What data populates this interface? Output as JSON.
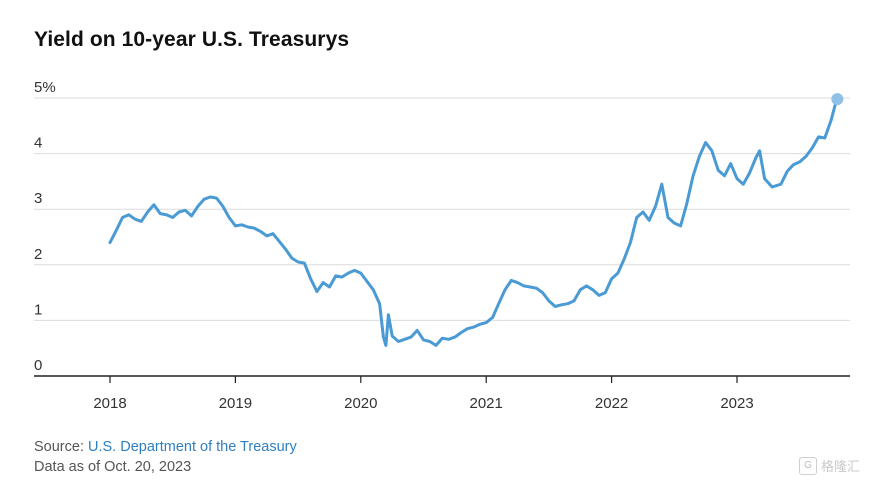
{
  "chart_data": {
    "type": "line",
    "title": "Yield on 10-year U.S. Treasurys",
    "y_unit_suffix": "%",
    "ylim": [
      0,
      5
    ],
    "yticks": [
      "0",
      "1",
      "2",
      "3",
      "4",
      "5%"
    ],
    "xlim": [
      2018.0,
      2023.88
    ],
    "xticks": [
      "2018",
      "2019",
      "2020",
      "2021",
      "2022",
      "2023"
    ],
    "grid": true,
    "line_color": "#4a9ad4",
    "endpoint_color": "#8fc0e6",
    "series": [
      {
        "values": [
          [
            2018.0,
            2.4
          ],
          [
            2018.05,
            2.62
          ],
          [
            2018.1,
            2.85
          ],
          [
            2018.15,
            2.9
          ],
          [
            2018.2,
            2.82
          ],
          [
            2018.25,
            2.78
          ],
          [
            2018.3,
            2.95
          ],
          [
            2018.35,
            3.08
          ],
          [
            2018.4,
            2.92
          ],
          [
            2018.45,
            2.9
          ],
          [
            2018.5,
            2.85
          ],
          [
            2018.55,
            2.95
          ],
          [
            2018.6,
            2.98
          ],
          [
            2018.65,
            2.88
          ],
          [
            2018.7,
            3.05
          ],
          [
            2018.75,
            3.18
          ],
          [
            2018.8,
            3.22
          ],
          [
            2018.85,
            3.2
          ],
          [
            2018.9,
            3.05
          ],
          [
            2018.95,
            2.85
          ],
          [
            2019.0,
            2.7
          ],
          [
            2019.05,
            2.72
          ],
          [
            2019.1,
            2.68
          ],
          [
            2019.15,
            2.66
          ],
          [
            2019.2,
            2.6
          ],
          [
            2019.25,
            2.52
          ],
          [
            2019.3,
            2.56
          ],
          [
            2019.35,
            2.42
          ],
          [
            2019.4,
            2.28
          ],
          [
            2019.45,
            2.12
          ],
          [
            2019.5,
            2.05
          ],
          [
            2019.55,
            2.03
          ],
          [
            2019.6,
            1.75
          ],
          [
            2019.65,
            1.52
          ],
          [
            2019.7,
            1.68
          ],
          [
            2019.75,
            1.6
          ],
          [
            2019.8,
            1.8
          ],
          [
            2019.85,
            1.78
          ],
          [
            2019.9,
            1.85
          ],
          [
            2019.95,
            1.9
          ],
          [
            2020.0,
            1.85
          ],
          [
            2020.05,
            1.7
          ],
          [
            2020.1,
            1.55
          ],
          [
            2020.15,
            1.3
          ],
          [
            2020.18,
            0.7
          ],
          [
            2020.2,
            0.55
          ],
          [
            2020.22,
            1.1
          ],
          [
            2020.25,
            0.72
          ],
          [
            2020.3,
            0.62
          ],
          [
            2020.35,
            0.66
          ],
          [
            2020.4,
            0.7
          ],
          [
            2020.45,
            0.82
          ],
          [
            2020.5,
            0.65
          ],
          [
            2020.55,
            0.62
          ],
          [
            2020.6,
            0.55
          ],
          [
            2020.65,
            0.68
          ],
          [
            2020.7,
            0.66
          ],
          [
            2020.75,
            0.7
          ],
          [
            2020.8,
            0.78
          ],
          [
            2020.85,
            0.85
          ],
          [
            2020.9,
            0.88
          ],
          [
            2020.95,
            0.93
          ],
          [
            2021.0,
            0.96
          ],
          [
            2021.05,
            1.05
          ],
          [
            2021.1,
            1.3
          ],
          [
            2021.15,
            1.55
          ],
          [
            2021.2,
            1.72
          ],
          [
            2021.25,
            1.68
          ],
          [
            2021.3,
            1.62
          ],
          [
            2021.35,
            1.6
          ],
          [
            2021.4,
            1.58
          ],
          [
            2021.45,
            1.5
          ],
          [
            2021.5,
            1.35
          ],
          [
            2021.55,
            1.25
          ],
          [
            2021.6,
            1.28
          ],
          [
            2021.65,
            1.3
          ],
          [
            2021.7,
            1.35
          ],
          [
            2021.75,
            1.55
          ],
          [
            2021.8,
            1.62
          ],
          [
            2021.85,
            1.55
          ],
          [
            2021.9,
            1.45
          ],
          [
            2021.95,
            1.5
          ],
          [
            2022.0,
            1.75
          ],
          [
            2022.05,
            1.85
          ],
          [
            2022.1,
            2.1
          ],
          [
            2022.15,
            2.4
          ],
          [
            2022.2,
            2.85
          ],
          [
            2022.25,
            2.95
          ],
          [
            2022.3,
            2.8
          ],
          [
            2022.35,
            3.05
          ],
          [
            2022.4,
            3.45
          ],
          [
            2022.45,
            2.85
          ],
          [
            2022.5,
            2.75
          ],
          [
            2022.55,
            2.7
          ],
          [
            2022.6,
            3.1
          ],
          [
            2022.65,
            3.6
          ],
          [
            2022.7,
            3.95
          ],
          [
            2022.75,
            4.2
          ],
          [
            2022.8,
            4.05
          ],
          [
            2022.85,
            3.7
          ],
          [
            2022.9,
            3.6
          ],
          [
            2022.95,
            3.82
          ],
          [
            2023.0,
            3.55
          ],
          [
            2023.05,
            3.45
          ],
          [
            2023.1,
            3.65
          ],
          [
            2023.15,
            3.92
          ],
          [
            2023.18,
            4.05
          ],
          [
            2023.22,
            3.55
          ],
          [
            2023.28,
            3.4
          ],
          [
            2023.35,
            3.45
          ],
          [
            2023.4,
            3.68
          ],
          [
            2023.45,
            3.8
          ],
          [
            2023.5,
            3.85
          ],
          [
            2023.55,
            3.95
          ],
          [
            2023.6,
            4.1
          ],
          [
            2023.65,
            4.3
          ],
          [
            2023.7,
            4.28
          ],
          [
            2023.75,
            4.6
          ],
          [
            2023.78,
            4.85
          ],
          [
            2023.8,
            4.98
          ]
        ]
      }
    ],
    "source_label": "Source: ",
    "source_link": "U.S. Department of the Treasury",
    "as_of": "Data as of Oct. 20, 2023"
  },
  "watermark": "格隆汇"
}
